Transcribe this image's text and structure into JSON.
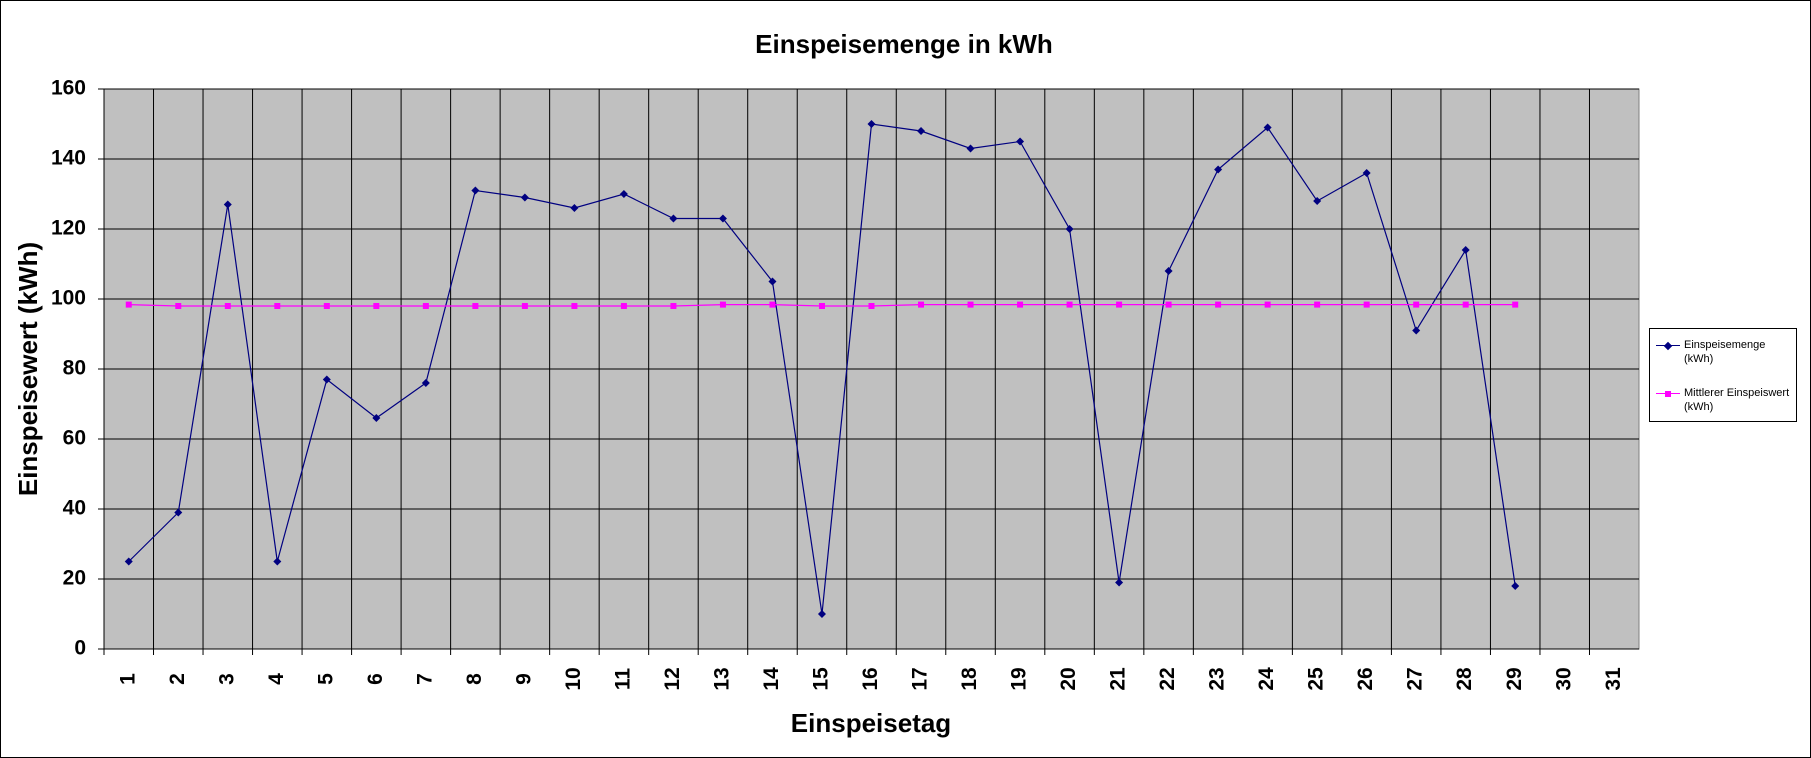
{
  "chart_data": {
    "type": "line",
    "title": "Einspeisemenge in kWh",
    "x_label": "Einspeisetag",
    "y_label": "Einspeisewert  (kWh)",
    "categories": [
      "1",
      "2",
      "3",
      "4",
      "5",
      "6",
      "7",
      "8",
      "9",
      "10",
      "11",
      "12",
      "13",
      "14",
      "15",
      "16",
      "17",
      "18",
      "19",
      "20",
      "21",
      "22",
      "23",
      "24",
      "25",
      "26",
      "27",
      "28",
      "29",
      "30",
      "31"
    ],
    "series": [
      {
        "name": "Einspeisemenge (kWh)",
        "color": "#000080",
        "marker": "diamond",
        "values": [
          25,
          39,
          127,
          25,
          77,
          66,
          76,
          131,
          129,
          126,
          130,
          123,
          123,
          105,
          10,
          150,
          148,
          143,
          145,
          120,
          19,
          108,
          137,
          149,
          128,
          136,
          91,
          114,
          18,
          null,
          null
        ]
      },
      {
        "name": "Mittlerer Einspeiswert (kWh)",
        "color": "#ff00ff",
        "marker": "square",
        "values": [
          98.4,
          98,
          98,
          98,
          98,
          98,
          98,
          98,
          98,
          98,
          98,
          98,
          98.4,
          98.4,
          98,
          98,
          98.4,
          98.4,
          98.4,
          98.4,
          98.4,
          98.4,
          98.4,
          98.4,
          98.4,
          98.4,
          98.4,
          98.4,
          98.4,
          null,
          null
        ]
      }
    ],
    "ylim": [
      0,
      160
    ],
    "yticks": [
      0,
      20,
      40,
      60,
      80,
      100,
      120,
      140,
      160
    ],
    "grid": true,
    "plot_background": "#c0c0c0",
    "legend": "right"
  }
}
